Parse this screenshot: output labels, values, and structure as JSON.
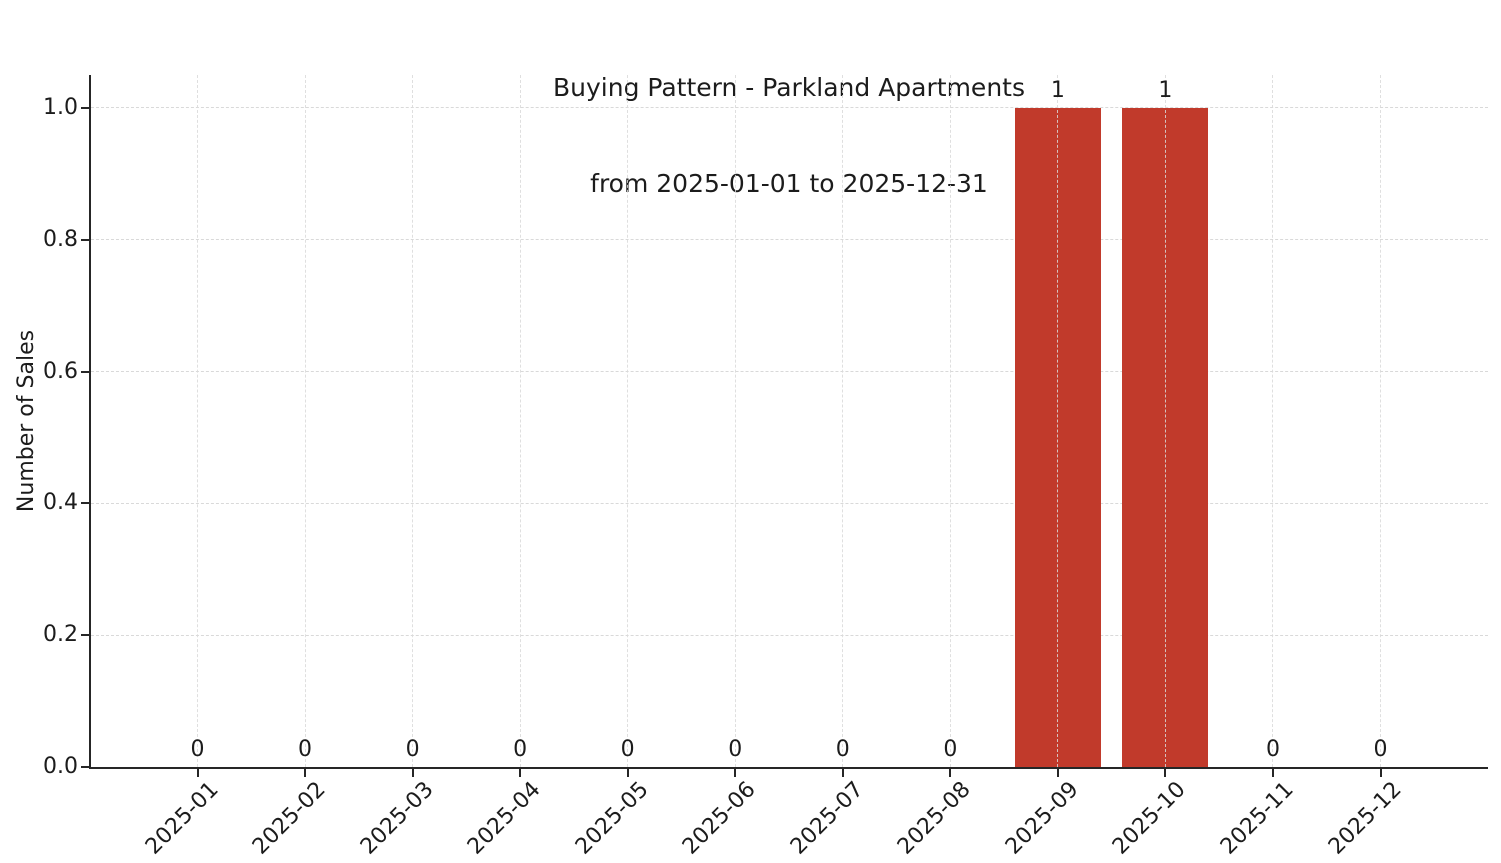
{
  "figure": {
    "title_line1": "Buying Pattern - Parkland Apartments",
    "title_line2": "from 2025-01-01 to 2025-12-31",
    "ylabel": "Number of Sales"
  },
  "chart_data": {
    "type": "bar",
    "title": "Buying Pattern - Parkland Apartments\nfrom 2025-01-01 to 2025-12-31",
    "xlabel": "",
    "ylabel": "Number of Sales",
    "categories": [
      "2025-01",
      "2025-02",
      "2025-03",
      "2025-04",
      "2025-05",
      "2025-06",
      "2025-07",
      "2025-08",
      "2025-09",
      "2025-10",
      "2025-11",
      "2025-12"
    ],
    "values": [
      0,
      0,
      0,
      0,
      0,
      0,
      0,
      0,
      1,
      1,
      0,
      0
    ],
    "bar_value_labels": [
      "0",
      "0",
      "0",
      "0",
      "0",
      "0",
      "0",
      "0",
      "1",
      "1",
      "0",
      "0"
    ],
    "yticks": [
      0.0,
      0.2,
      0.4,
      0.6,
      0.8,
      1.0
    ],
    "ytick_labels": [
      "0.0",
      "0.2",
      "0.4",
      "0.6",
      "0.8",
      "1.0"
    ],
    "ylim": [
      0,
      1.05
    ],
    "x_tick_rotation_deg": 45,
    "grid": true,
    "grid_style": "dashed",
    "legend_position": "none",
    "bar_color": "#c13a2b",
    "axis_color": "#262626",
    "grid_color": "#d9d9d9",
    "text_color": "#1c1c1c",
    "background_color": "#ffffff"
  }
}
